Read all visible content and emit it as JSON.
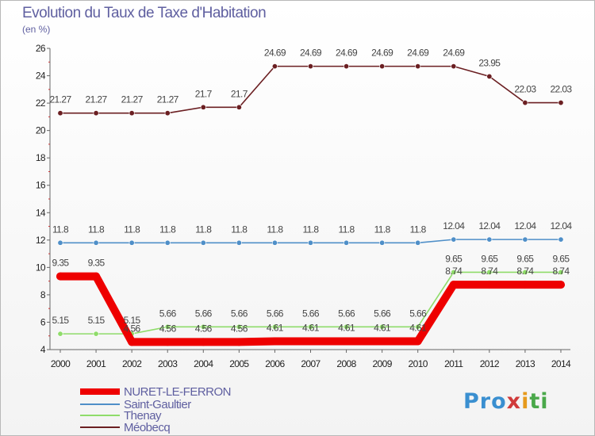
{
  "title": "Evolution du Taux de Taxe d'Habitation",
  "subtitle": "(en %)",
  "logo": {
    "p1": "Pro",
    "p2": "x",
    "p3": "i",
    "p4": "ti"
  },
  "colors": {
    "nuret": "#ee0000",
    "saint": "#4f8fc8",
    "thenay": "#8fdc6a",
    "meobecq": "#6b1f22"
  },
  "chart_data": {
    "type": "line",
    "title": "Evolution du Taux de Taxe d'Habitation",
    "ylabel": "(en %)",
    "xlabel": "",
    "ylim": [
      4,
      26
    ],
    "yticks": [
      "4",
      "6",
      "8",
      "10",
      "12",
      "14",
      "16",
      "18",
      "20",
      "22",
      "24",
      "26"
    ],
    "categories": [
      "2000",
      "2001",
      "2002",
      "2003",
      "2004",
      "2005",
      "2006",
      "2007",
      "2008",
      "2009",
      "2010",
      "2011",
      "2012",
      "2013",
      "2014"
    ],
    "series": [
      {
        "name": "NURET-LE-FERRON",
        "color": "#ee0000",
        "values": [
          9.35,
          9.35,
          4.56,
          4.56,
          4.56,
          4.56,
          4.61,
          4.61,
          4.61,
          4.61,
          4.61,
          8.74,
          8.74,
          8.74,
          8.74
        ],
        "labels": [
          "9.35",
          "9.35",
          "4.56",
          "4.56",
          "4.56",
          "4.56",
          "4.61",
          "4.61",
          "4.61",
          "4.61",
          "4.61",
          "8.74",
          "8.74",
          "8.74",
          "8.74"
        ]
      },
      {
        "name": "Saint-Gaultier",
        "color": "#4f8fc8",
        "values": [
          11.8,
          11.8,
          11.8,
          11.8,
          11.8,
          11.8,
          11.8,
          11.8,
          11.8,
          11.8,
          11.8,
          12.04,
          12.04,
          12.04,
          12.04
        ],
        "labels": [
          "11.8",
          "11.8",
          "11.8",
          "11.8",
          "11.8",
          "11.8",
          "11.8",
          "11.8",
          "11.8",
          "11.8",
          "11.8",
          "12.04",
          "12.04",
          "12.04",
          "12.04"
        ]
      },
      {
        "name": "Thenay",
        "color": "#8fdc6a",
        "values": [
          5.15,
          5.15,
          5.15,
          5.66,
          5.66,
          5.66,
          5.66,
          5.66,
          5.66,
          5.66,
          5.66,
          9.65,
          9.65,
          9.65,
          9.65
        ],
        "labels": [
          "5.15",
          "5.15",
          "5.15",
          "5.66",
          "5.66",
          "5.66",
          "5.66",
          "5.66",
          "5.66",
          "5.66",
          "5.66",
          "9.65",
          "9.65",
          "9.65",
          "9.65"
        ]
      },
      {
        "name": "Méobecq",
        "color": "#6b1f22",
        "values": [
          21.27,
          21.27,
          21.27,
          21.27,
          21.7,
          21.7,
          24.69,
          24.69,
          24.69,
          24.69,
          24.69,
          24.69,
          23.95,
          22.03,
          22.03
        ],
        "labels": [
          "21.27",
          "21.27",
          "21.27",
          "21.27",
          "21.7",
          "21.7",
          "24.69",
          "24.69",
          "24.69",
          "24.69",
          "24.69",
          "24.69",
          "23.95",
          "22.03",
          "22.03"
        ]
      }
    ]
  }
}
